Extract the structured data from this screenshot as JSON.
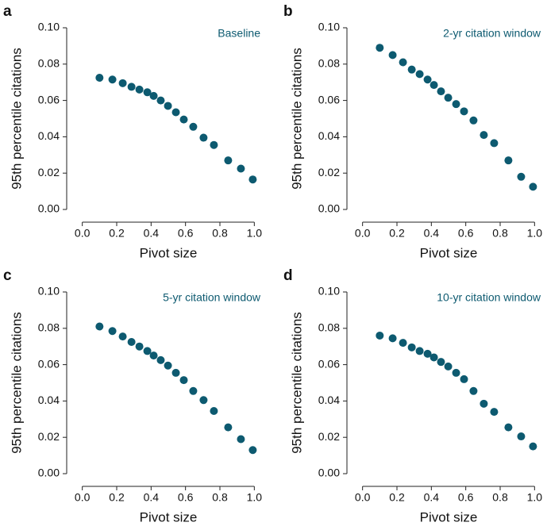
{
  "chart_data": [
    {
      "type": "scatter",
      "panel": "a",
      "annotation": "Baseline",
      "xlabel": "Pivot size",
      "ylabel": "95th percentile citations",
      "color": "#0d5a70",
      "x": [
        0.1,
        0.175,
        0.235,
        0.286,
        0.332,
        0.378,
        0.415,
        0.456,
        0.498,
        0.544,
        0.59,
        0.645,
        0.705,
        0.765,
        0.848,
        0.922,
        0.991
      ],
      "values": [
        0.0725,
        0.0715,
        0.0695,
        0.0675,
        0.066,
        0.0645,
        0.0625,
        0.06,
        0.057,
        0.0535,
        0.0495,
        0.0455,
        0.0395,
        0.0355,
        0.027,
        0.0225,
        0.0165
      ],
      "xlim": [
        -0.1,
        1.1
      ],
      "ylim": [
        0,
        0.1
      ],
      "xticks": [
        {
          "value": 0,
          "label": "0.0"
        },
        0.2,
        0.4,
        0.6,
        0.8,
        {
          "value": 1,
          "label": "1.0"
        }
      ],
      "yticks": [
        {
          "value": 0,
          "label": "0.00"
        },
        0.02,
        0.04,
        0.06,
        0.08,
        {
          "value": 0.1,
          "label": "0.10"
        }
      ]
    },
    {
      "type": "scatter",
      "panel": "b",
      "annotation": "2-yr citation window",
      "xlabel": "Pivot size",
      "ylabel": "95th percentile citations",
      "color": "#0d5a70",
      "x": [
        0.1,
        0.175,
        0.235,
        0.286,
        0.332,
        0.378,
        0.415,
        0.456,
        0.498,
        0.544,
        0.59,
        0.645,
        0.705,
        0.765,
        0.848,
        0.922,
        0.991
      ],
      "values": [
        0.089,
        0.085,
        0.081,
        0.077,
        0.0745,
        0.0715,
        0.0685,
        0.065,
        0.0615,
        0.058,
        0.054,
        0.049,
        0.041,
        0.0365,
        0.027,
        0.018,
        0.0125
      ],
      "xlim": [
        -0.1,
        1.1
      ],
      "ylim": [
        0,
        0.1
      ],
      "xticks": [
        {
          "value": 0,
          "label": "0.0"
        },
        0.2,
        0.4,
        0.6,
        0.8,
        {
          "value": 1,
          "label": "1.0"
        }
      ],
      "yticks": [
        {
          "value": 0,
          "label": "0.00"
        },
        0.02,
        0.04,
        0.06,
        0.08,
        {
          "value": 0.1,
          "label": "0.10"
        }
      ]
    },
    {
      "type": "scatter",
      "panel": "c",
      "annotation": "5-yr citation window",
      "xlabel": "Pivot size",
      "ylabel": "95th percentile citations",
      "color": "#0d5a70",
      "x": [
        0.1,
        0.175,
        0.235,
        0.286,
        0.332,
        0.378,
        0.415,
        0.456,
        0.498,
        0.544,
        0.59,
        0.645,
        0.705,
        0.765,
        0.848,
        0.922,
        0.991
      ],
      "values": [
        0.081,
        0.0785,
        0.0755,
        0.0725,
        0.07,
        0.0675,
        0.065,
        0.0625,
        0.0595,
        0.0555,
        0.0515,
        0.0455,
        0.0405,
        0.0345,
        0.0255,
        0.019,
        0.013
      ],
      "xlim": [
        -0.1,
        1.1
      ],
      "ylim": [
        0,
        0.1
      ],
      "xticks": [
        {
          "value": 0,
          "label": "0.0"
        },
        0.2,
        0.4,
        0.6,
        0.8,
        {
          "value": 1,
          "label": "1.0"
        }
      ],
      "yticks": [
        {
          "value": 0,
          "label": "0.00"
        },
        0.02,
        0.04,
        0.06,
        0.08,
        {
          "value": 0.1,
          "label": "0.10"
        }
      ]
    },
    {
      "type": "scatter",
      "panel": "d",
      "annotation": "10-yr citation window",
      "xlabel": "Pivot size",
      "ylabel": "95th percentile citations",
      "color": "#0d5a70",
      "x": [
        0.1,
        0.175,
        0.235,
        0.286,
        0.332,
        0.378,
        0.415,
        0.456,
        0.498,
        0.544,
        0.59,
        0.645,
        0.705,
        0.765,
        0.848,
        0.922,
        0.991
      ],
      "values": [
        0.076,
        0.0745,
        0.072,
        0.0695,
        0.0675,
        0.066,
        0.064,
        0.0615,
        0.059,
        0.0555,
        0.052,
        0.0455,
        0.0385,
        0.034,
        0.0255,
        0.0205,
        0.015
      ],
      "xlim": [
        -0.1,
        1.1
      ],
      "ylim": [
        0,
        0.1
      ],
      "xticks": [
        {
          "value": 0,
          "label": "0.0"
        },
        0.2,
        0.4,
        0.6,
        0.8,
        {
          "value": 1,
          "label": "1.0"
        }
      ],
      "yticks": [
        {
          "value": 0,
          "label": "0.00"
        },
        0.02,
        0.04,
        0.06,
        0.08,
        {
          "value": 0.1,
          "label": "0.10"
        }
      ]
    }
  ]
}
